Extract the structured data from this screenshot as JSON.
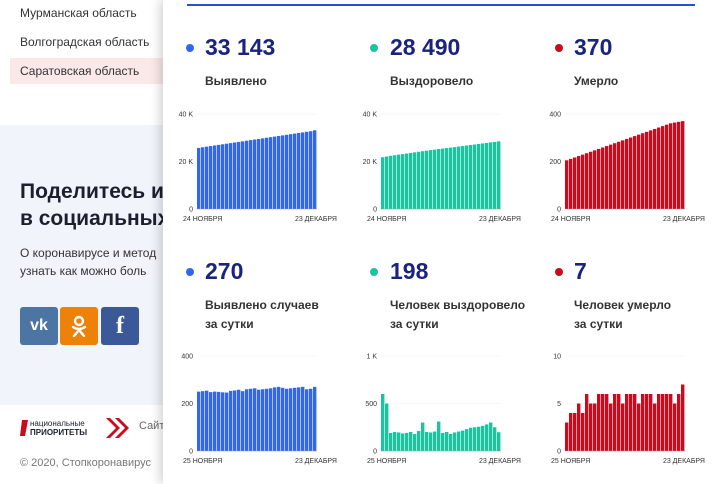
{
  "background_page": {
    "regions": [
      "Мурманская область",
      "Волгоградская область",
      "Саратовская область"
    ],
    "share_title_line1": "Поделитесь и",
    "share_title_line2": "в социальных",
    "share_text_line1": "О коронавирусе и метод",
    "share_text_line2": "узнать как можно боль",
    "social": {
      "vk": "vk",
      "ok": "ok",
      "fb": "f"
    },
    "np_logo_line1": "национальные",
    "np_logo_line2": "ПРИОРИТЕТЫ",
    "site_text": "Сайт",
    "copyright": "© 2020, Стопкоронавирус"
  },
  "colors": {
    "blue": "#3366ee",
    "green": "#1bc4a0",
    "red": "#cc0a1e",
    "title": "#1a237e"
  },
  "stats": {
    "detected": {
      "value": "33 143",
      "label": "Выявлено"
    },
    "recovered": {
      "value": "28 490",
      "label": "Выздоровело"
    },
    "died": {
      "value": "370",
      "label": "Умерло"
    },
    "detected_day": {
      "value": "270",
      "label1": "Выявлено случаев",
      "label2": "за сутки"
    },
    "recovered_day": {
      "value": "198",
      "label1": "Человек выздоровело",
      "label2": "за сутки"
    },
    "died_day": {
      "value": "7",
      "label1": "Человек умерло",
      "label2": "за сутки"
    }
  },
  "chart_data": [
    {
      "type": "bar",
      "name": "detected-total",
      "color": "#3366ee",
      "xlabel_start": "24 НОЯБРЯ",
      "xlabel_end": "23 ДЕКАБРЯ",
      "yticks": [
        "0",
        "20 K",
        "40 K"
      ],
      "ylim": [
        0,
        40000
      ],
      "values": [
        25700,
        26000,
        26250,
        26500,
        26750,
        27000,
        27250,
        27500,
        27750,
        28000,
        28250,
        28500,
        28750,
        29000,
        29250,
        29500,
        29750,
        30000,
        30250,
        30500,
        30750,
        31000,
        31250,
        31500,
        31750,
        32000,
        32250,
        32500,
        32750,
        33143
      ]
    },
    {
      "type": "bar",
      "name": "recovered-total",
      "color": "#1bc4a0",
      "xlabel_start": "24 НОЯБРЯ",
      "xlabel_end": "23 ДЕКАБРЯ",
      "yticks": [
        "0",
        "20 K",
        "40 K"
      ],
      "ylim": [
        0,
        40000
      ],
      "values": [
        21800,
        22100,
        22400,
        22650,
        22900,
        23100,
        23350,
        23600,
        23850,
        24100,
        24350,
        24550,
        24800,
        25000,
        25250,
        25450,
        25650,
        25850,
        26050,
        26300,
        26500,
        26750,
        26950,
        27150,
        27400,
        27600,
        27800,
        28050,
        28250,
        28490
      ]
    },
    {
      "type": "bar",
      "name": "died-total",
      "color": "#cc0a1e",
      "xlabel_start": "24 НОЯБРЯ",
      "xlabel_end": "23 ДЕКАБРЯ",
      "yticks": [
        "0",
        "200",
        "400"
      ],
      "ylim": [
        0,
        400
      ],
      "values": [
        205,
        211,
        217,
        223,
        229,
        235,
        241,
        247,
        253,
        259,
        265,
        271,
        277,
        283,
        289,
        295,
        301,
        307,
        313,
        319,
        325,
        331,
        337,
        343,
        349,
        355,
        361,
        364,
        367,
        370
      ]
    },
    {
      "type": "bar",
      "name": "detected-daily",
      "color": "#3366ee",
      "xlabel_start": "25 НОЯБРЯ",
      "xlabel_end": "23 ДЕКАБРЯ",
      "yticks": [
        "0",
        "200",
        "400"
      ],
      "ylim": [
        0,
        400
      ],
      "values": [
        250,
        252,
        254,
        248,
        250,
        249,
        247,
        246,
        253,
        255,
        258,
        252,
        260,
        262,
        264,
        258,
        260,
        262,
        264,
        268,
        270,
        266,
        262,
        264,
        266,
        268,
        270,
        260,
        262,
        270
      ]
    },
    {
      "type": "bar",
      "name": "recovered-daily",
      "color": "#1bc4a0",
      "xlabel_start": "25 НОЯБРЯ",
      "xlabel_end": "23 ДЕКАБРЯ",
      "yticks": [
        "0",
        "500",
        "1 K"
      ],
      "ylim": [
        0,
        1000
      ],
      "values": [
        600,
        500,
        190,
        200,
        195,
        185,
        190,
        200,
        180,
        210,
        300,
        200,
        195,
        205,
        310,
        190,
        200,
        180,
        195,
        205,
        215,
        230,
        245,
        250,
        255,
        265,
        280,
        300,
        250,
        198
      ]
    },
    {
      "type": "bar",
      "name": "died-daily",
      "color": "#cc0a1e",
      "xlabel_start": "25 НОЯБРЯ",
      "xlabel_end": "23 ДЕКАБРЯ",
      "yticks": [
        "0",
        "5",
        "10"
      ],
      "ylim": [
        0,
        10
      ],
      "values": [
        3,
        4,
        4,
        5,
        4,
        6,
        5,
        5,
        6,
        6,
        6,
        5,
        6,
        6,
        5,
        6,
        6,
        6,
        5,
        6,
        6,
        6,
        5,
        6,
        6,
        6,
        6,
        5,
        6,
        7
      ]
    }
  ]
}
